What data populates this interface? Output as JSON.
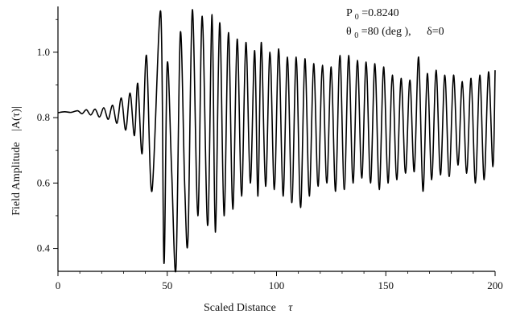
{
  "chart_data": {
    "type": "line",
    "xlabel": "Scaled Distance",
    "xlabel_symbol": "τ",
    "ylabel": "Field Amplitude",
    "ylabel_symbol": "|A(τ)|",
    "xlim": [
      0,
      200
    ],
    "ylim": [
      0.33,
      1.14
    ],
    "x_ticks": [
      0,
      50,
      100,
      150,
      200
    ],
    "y_ticks": [
      0.4,
      0.6,
      0.8,
      1.0
    ],
    "x_tick_labels": [
      "0",
      "50",
      "100",
      "150",
      "200"
    ],
    "y_tick_labels": [
      "0.4",
      "0.6",
      "0.8",
      "1.0"
    ],
    "grid": false,
    "annotation_p0": {
      "prefix": "P",
      "sub": "0",
      "value": "=0.8240"
    },
    "annotation_theta": {
      "prefix": "θ",
      "sub": "0",
      "value": "=80 (deg ),",
      "delta": "δ=0"
    },
    "series": [
      {
        "color": "#000000",
        "points": [
          [
            0,
            0.815
          ],
          [
            3,
            0.818
          ],
          [
            6,
            0.816
          ],
          [
            9,
            0.821
          ],
          [
            11,
            0.812
          ],
          [
            13,
            0.824
          ],
          [
            15,
            0.808
          ],
          [
            17,
            0.826
          ],
          [
            19,
            0.802
          ],
          [
            21,
            0.83
          ],
          [
            23,
            0.795
          ],
          [
            25,
            0.838
          ],
          [
            27,
            0.783
          ],
          [
            29,
            0.86
          ],
          [
            31,
            0.762
          ],
          [
            33,
            0.875
          ],
          [
            35,
            0.745
          ],
          [
            36.5,
            0.905
          ],
          [
            38.5,
            0.69
          ],
          [
            40.5,
            0.99
          ],
          [
            43,
            0.575
          ],
          [
            47,
            1.125
          ],
          [
            48.5,
            0.355
          ],
          [
            50,
            0.965
          ],
          [
            52,
            0.64
          ],
          [
            54,
            0.34
          ],
          [
            56,
            1.06
          ],
          [
            58,
            0.59
          ],
          [
            59.5,
            0.43
          ],
          [
            61.5,
            1.13
          ],
          [
            64,
            0.5
          ],
          [
            66,
            1.11
          ],
          [
            68.5,
            0.47
          ],
          [
            70.5,
            1.115
          ],
          [
            72,
            0.45
          ],
          [
            74,
            1.09
          ],
          [
            76,
            0.5
          ],
          [
            78,
            1.06
          ],
          [
            80,
            0.52
          ],
          [
            82,
            1.04
          ],
          [
            84,
            0.56
          ],
          [
            86,
            1.03
          ],
          [
            88,
            0.6
          ],
          [
            90,
            1.005
          ],
          [
            91.5,
            0.56
          ],
          [
            93,
            1.03
          ],
          [
            95,
            0.59
          ],
          [
            97,
            1.0
          ],
          [
            99,
            0.58
          ],
          [
            101,
            1.01
          ],
          [
            103,
            0.56
          ],
          [
            105,
            0.985
          ],
          [
            107,
            0.54
          ],
          [
            109,
            0.985
          ],
          [
            111,
            0.525
          ],
          [
            113,
            0.98
          ],
          [
            115,
            0.56
          ],
          [
            117,
            0.965
          ],
          [
            119,
            0.59
          ],
          [
            121,
            0.96
          ],
          [
            123,
            0.6
          ],
          [
            125,
            0.955
          ],
          [
            127,
            0.575
          ],
          [
            129,
            0.99
          ],
          [
            131,
            0.58
          ],
          [
            133,
            0.99
          ],
          [
            135,
            0.6
          ],
          [
            137,
            0.975
          ],
          [
            139,
            0.615
          ],
          [
            141,
            0.97
          ],
          [
            143,
            0.6
          ],
          [
            145,
            0.965
          ],
          [
            147,
            0.58
          ],
          [
            149,
            0.955
          ],
          [
            151,
            0.6
          ],
          [
            153,
            0.93
          ],
          [
            155,
            0.61
          ],
          [
            157,
            0.92
          ],
          [
            159,
            0.63
          ],
          [
            161,
            0.915
          ],
          [
            163,
            0.635
          ],
          [
            165,
            0.985
          ],
          [
            167,
            0.575
          ],
          [
            169,
            0.935
          ],
          [
            171,
            0.61
          ],
          [
            173,
            0.945
          ],
          [
            175,
            0.625
          ],
          [
            177,
            0.93
          ],
          [
            179,
            0.62
          ],
          [
            181,
            0.93
          ],
          [
            183,
            0.655
          ],
          [
            185,
            0.91
          ],
          [
            187,
            0.63
          ],
          [
            189,
            0.92
          ],
          [
            191,
            0.6
          ],
          [
            193,
            0.93
          ],
          [
            195,
            0.61
          ],
          [
            197,
            0.94
          ],
          [
            199,
            0.65
          ],
          [
            200,
            0.945
          ]
        ]
      }
    ]
  }
}
